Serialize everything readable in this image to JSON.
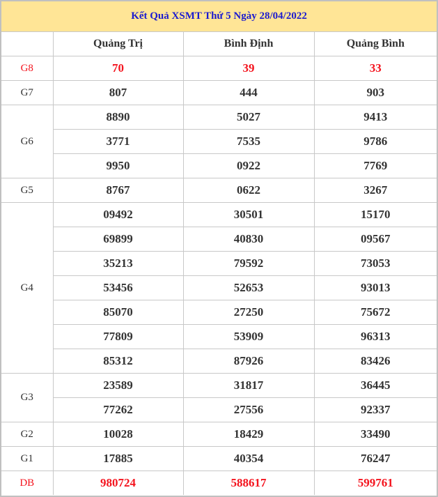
{
  "title": "Kết Quả XSMT Thứ 5 Ngày 28/04/2022",
  "columns": [
    "",
    "Quảng Trị",
    "Bình Định",
    "Quảng Bình"
  ],
  "highlight_color": "#f4141e",
  "prizes": [
    {
      "label": "G8",
      "red": true,
      "rows": [
        [
          "70",
          "39",
          "33"
        ]
      ]
    },
    {
      "label": "G7",
      "rows": [
        [
          "807",
          "444",
          "903"
        ]
      ]
    },
    {
      "label": "G6",
      "rows": [
        [
          "8890",
          "5027",
          "9413"
        ],
        [
          "3771",
          "7535",
          "9786"
        ],
        [
          "9950",
          "0922",
          "7769"
        ]
      ]
    },
    {
      "label": "G5",
      "rows": [
        [
          "8767",
          "0622",
          "3267"
        ]
      ]
    },
    {
      "label": "G4",
      "rows": [
        [
          "09492",
          "30501",
          "15170"
        ],
        [
          "69899",
          "40830",
          "09567"
        ],
        [
          "35213",
          "79592",
          "73053"
        ],
        [
          "53456",
          "52653",
          "93013"
        ],
        [
          "85070",
          "27250",
          "75672"
        ],
        [
          "77809",
          "53909",
          "96313"
        ],
        [
          "85312",
          "87926",
          "83426"
        ]
      ]
    },
    {
      "label": "G3",
      "rows": [
        [
          "23589",
          "31817",
          "36445"
        ],
        [
          "77262",
          "27556",
          "92337"
        ]
      ]
    },
    {
      "label": "G2",
      "rows": [
        [
          "10028",
          "18429",
          "33490"
        ]
      ]
    },
    {
      "label": "G1",
      "rows": [
        [
          "17885",
          "40354",
          "76247"
        ]
      ]
    },
    {
      "label": "DB",
      "red": true,
      "rows": [
        [
          "980724",
          "588617",
          "599761"
        ]
      ]
    }
  ]
}
